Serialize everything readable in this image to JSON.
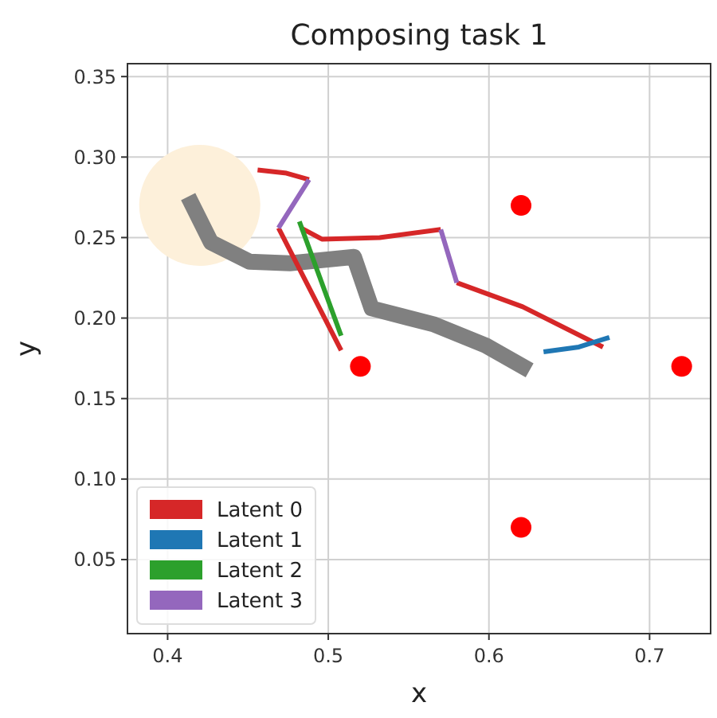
{
  "chart_data": {
    "type": "line",
    "title": "Composing task 1",
    "xlabel": "x",
    "ylabel": "y",
    "xlim": [
      0.375,
      0.738
    ],
    "ylim": [
      0.004,
      0.358
    ],
    "xticks": [
      0.4,
      0.5,
      0.6,
      0.7
    ],
    "yticks": [
      {
        "value": 0.05,
        "label": "0.05"
      },
      {
        "value": 0.1,
        "label": "0.10"
      },
      {
        "value": 0.15,
        "label": "0.15"
      },
      {
        "value": 0.2,
        "label": "0.20"
      },
      {
        "value": 0.25,
        "label": "0.25"
      },
      {
        "value": 0.3,
        "label": "0.30"
      },
      {
        "value": 0.35,
        "label": "0.35"
      }
    ],
    "grid": true,
    "legend": "bottom left",
    "series": [
      {
        "type": "bubble",
        "color": "#fdf0da",
        "x": [
          0.42
        ],
        "values": [
          0.27
        ],
        "sizes": [
          1
        ]
      },
      {
        "color": "#808080",
        "x": [
          0.415,
          0.427,
          0.451,
          0.476,
          0.516,
          0.527,
          0.566,
          0.598,
          0.621
        ],
        "values": [
          0.271,
          0.247,
          0.235,
          0.234,
          0.238,
          0.206,
          0.196,
          0.183,
          0.17
        ]
      },
      {
        "name": "Latent 0",
        "color": "#d62728",
        "x": [
          0.456,
          0.474,
          0.488,
          null,
          0.469,
          0.508,
          null,
          0.483,
          0.496,
          0.532,
          0.57,
          null,
          0.58,
          0.621,
          0.671
        ],
        "values": [
          0.292,
          0.29,
          0.286,
          null,
          0.256,
          0.18,
          null,
          0.256,
          0.249,
          0.25,
          0.255,
          null,
          0.222,
          0.207,
          0.182
        ]
      },
      {
        "name": "Latent 1",
        "color": "#1f77b4",
        "x": [
          0.634,
          0.656,
          0.675
        ],
        "values": [
          0.179,
          0.182,
          0.188
        ]
      },
      {
        "name": "Latent 2",
        "color": "#2ca02c",
        "x": [
          0.482,
          0.508
        ],
        "values": [
          0.26,
          0.189
        ]
      },
      {
        "name": "Latent 3",
        "color": "#9467bd",
        "x": [
          0.488,
          0.469,
          null,
          0.57,
          0.58
        ],
        "values": [
          0.286,
          0.256,
          null,
          0.255,
          0.222
        ]
      },
      {
        "type": "scatter",
        "color": "#ff0000",
        "marker": "circle",
        "x": [
          0.62,
          0.52,
          0.72,
          0.62
        ],
        "values": [
          0.27,
          0.17,
          0.17,
          0.07
        ]
      }
    ]
  }
}
